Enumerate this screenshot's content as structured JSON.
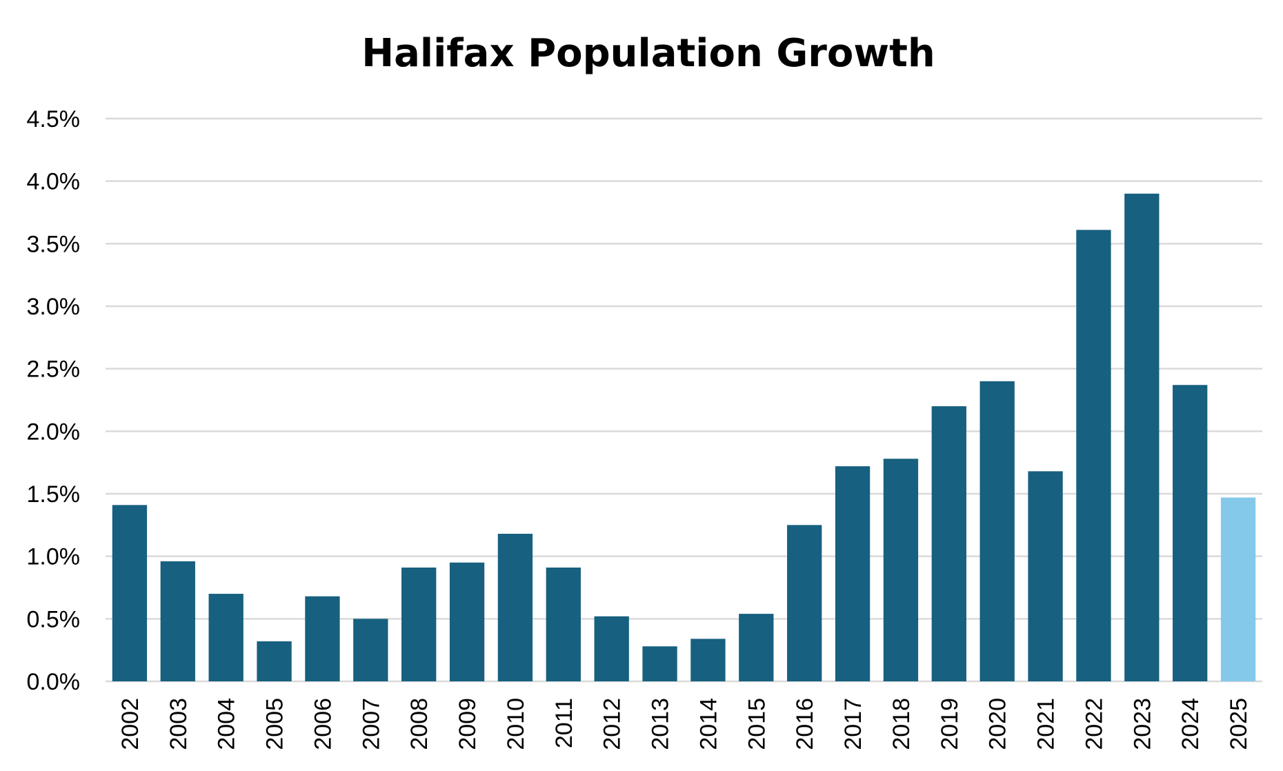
{
  "chart_data": {
    "type": "bar",
    "title": "Halifax Population Growth",
    "xlabel": "",
    "ylabel": "",
    "ylim": [
      0,
      4.5
    ],
    "y_ticks": [
      "0.0%",
      "0.5%",
      "1.0%",
      "1.5%",
      "2.0%",
      "2.5%",
      "3.0%",
      "3.5%",
      "4.0%",
      "4.5%"
    ],
    "y_tick_values": [
      0,
      0.5,
      1.0,
      1.5,
      2.0,
      2.5,
      3.0,
      3.5,
      4.0,
      4.5
    ],
    "grid": true,
    "legend": "none",
    "categories": [
      "2002",
      "2003",
      "2004",
      "2005",
      "2006",
      "2007",
      "2008",
      "2009",
      "2010",
      "2011",
      "2012",
      "2013",
      "2014",
      "2015",
      "2016",
      "2017",
      "2018",
      "2019",
      "2020",
      "2021",
      "2022",
      "2023",
      "2024",
      "2025"
    ],
    "values": [
      1.41,
      0.96,
      0.7,
      0.32,
      0.68,
      0.5,
      0.91,
      0.95,
      1.18,
      0.91,
      0.52,
      0.28,
      0.34,
      0.54,
      1.25,
      1.72,
      1.78,
      2.2,
      2.4,
      1.68,
      3.61,
      3.9,
      2.37,
      1.47
    ],
    "colors": {
      "bar": "#17607f",
      "highlight": "#85c9ea"
    },
    "highlight_category": "2025"
  }
}
